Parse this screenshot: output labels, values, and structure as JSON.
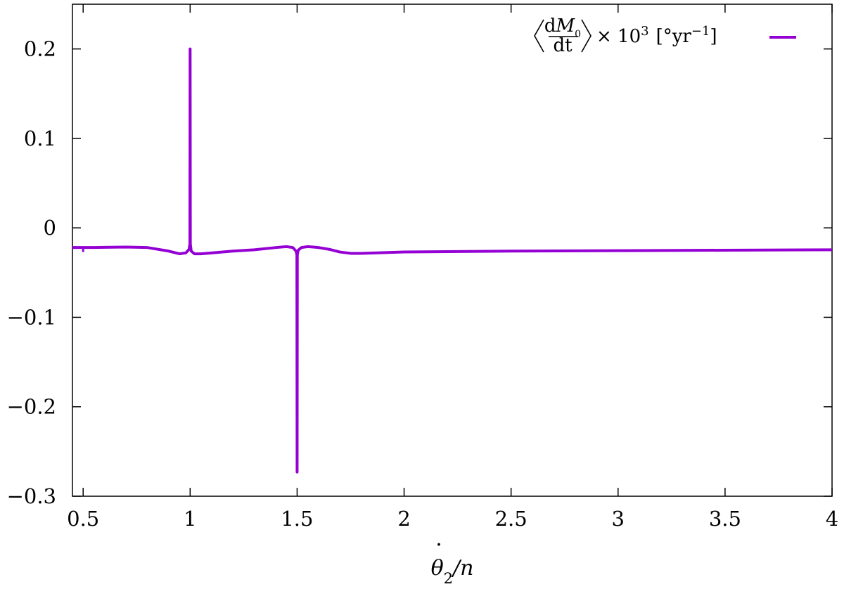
{
  "chart_data": {
    "type": "line",
    "title": "",
    "xlabel": "θ̇₂/n",
    "ylabel": "",
    "xlim": [
      0.45,
      4.0
    ],
    "ylim": [
      -0.3,
      0.25
    ],
    "x_ticks": [
      0.5,
      1,
      1.5,
      2,
      2.5,
      3,
      3.5,
      4
    ],
    "x_tick_labels": [
      "0.5",
      "1",
      "1.5",
      "2",
      "2.5",
      "3",
      "3.5",
      "4"
    ],
    "y_ticks": [
      -0.3,
      -0.2,
      -0.1,
      0,
      0.1,
      0.2
    ],
    "y_tick_labels": [
      "−0.3",
      "−0.2",
      "−0.1",
      "0",
      "0.1",
      "0.2"
    ],
    "grid": false,
    "legend_position": "top-right",
    "series": [
      {
        "name": "⟨dM₀/dt⟩ × 10³ [°yr⁻¹]",
        "color": "#9400d3",
        "x": [
          0.45,
          0.5,
          0.55,
          0.6,
          0.7,
          0.8,
          0.9,
          0.95,
          0.98,
          0.995,
          0.999,
          1.0,
          1.001,
          1.005,
          1.02,
          1.05,
          1.1,
          1.2,
          1.3,
          1.4,
          1.45,
          1.48,
          1.495,
          1.499,
          1.5,
          1.501,
          1.505,
          1.52,
          1.55,
          1.6,
          1.65,
          1.7,
          1.75,
          1.8,
          2.0,
          2.5,
          3.0,
          3.5,
          4.0
        ],
        "y": [
          -0.022,
          -0.022,
          -0.022,
          -0.0218,
          -0.0215,
          -0.022,
          -0.026,
          -0.029,
          -0.028,
          -0.024,
          -0.018,
          0.2,
          -0.018,
          -0.026,
          -0.029,
          -0.029,
          -0.028,
          -0.026,
          -0.0245,
          -0.022,
          -0.021,
          -0.022,
          -0.026,
          -0.03,
          -0.273,
          -0.03,
          -0.025,
          -0.022,
          -0.021,
          -0.022,
          -0.024,
          -0.027,
          -0.0285,
          -0.0285,
          -0.027,
          -0.026,
          -0.0255,
          -0.025,
          -0.0245
        ]
      }
    ]
  },
  "legend": {
    "prefix": "d",
    "m_sym": "M",
    "m_sub": "0",
    "dt": "dt",
    "times": "× 10",
    "exp": "3",
    "unit_open": "[°yr",
    "unit_exp": "−1",
    "unit_close": "]"
  },
  "x_axis_label": {
    "theta": "θ",
    "sub": "2",
    "rest": "/n"
  }
}
